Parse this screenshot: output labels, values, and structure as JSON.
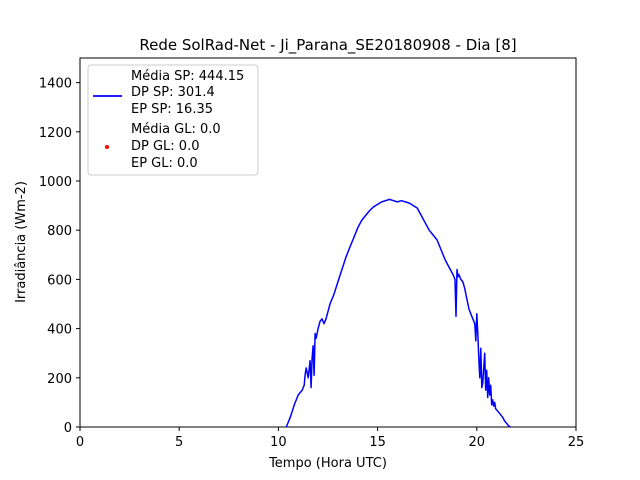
{
  "chart_data": {
    "type": "line",
    "title": "Rede SolRad-Net - Ji_Parana_SE20180908 - Dia [8]",
    "xlabel": "Tempo (Hora UTC)",
    "ylabel": "Irradiância (Wm-2)",
    "xlim": [
      0,
      25
    ],
    "ylim": [
      0,
      1500
    ],
    "xticks": [
      0,
      5,
      10,
      15,
      20,
      25
    ],
    "yticks": [
      0,
      200,
      400,
      600,
      800,
      1000,
      1200,
      1400
    ],
    "grid": false,
    "legend_position": "top-left",
    "series": [
      {
        "name": "SP",
        "legend_lines": [
          "Média SP: 444.15",
          "DP SP: 301.4",
          "EP SP: 16.35"
        ],
        "color": "#0000ff",
        "marker": "line",
        "x": [
          10.4,
          10.6,
          10.8,
          11.0,
          11.2,
          11.3,
          11.35,
          11.4,
          11.5,
          11.6,
          11.65,
          11.7,
          11.75,
          11.8,
          11.85,
          11.9,
          12.0,
          12.1,
          12.2,
          12.3,
          12.4,
          12.5,
          12.6,
          12.8,
          13.0,
          13.2,
          13.4,
          13.6,
          13.8,
          14.0,
          14.2,
          14.4,
          14.6,
          14.8,
          15.0,
          15.2,
          15.4,
          15.6,
          15.8,
          16.0,
          16.2,
          16.4,
          16.6,
          16.8,
          17.0,
          17.2,
          17.4,
          17.6,
          17.8,
          18.0,
          18.2,
          18.4,
          18.6,
          18.8,
          18.9,
          18.95,
          19.0,
          19.05,
          19.1,
          19.2,
          19.3,
          19.4,
          19.5,
          19.6,
          19.7,
          19.8,
          19.9,
          19.95,
          20.0,
          20.05,
          20.1,
          20.15,
          20.2,
          20.25,
          20.3,
          20.35,
          20.4,
          20.45,
          20.5,
          20.55,
          20.6,
          20.65,
          20.7,
          20.75,
          20.8,
          20.85,
          20.9,
          20.95,
          21.0,
          21.1,
          21.2,
          21.3,
          21.4,
          21.5,
          21.6,
          21.7
        ],
        "y": [
          0,
          40,
          90,
          130,
          150,
          170,
          215,
          240,
          200,
          270,
          160,
          280,
          330,
          210,
          380,
          360,
          400,
          430,
          440,
          420,
          440,
          470,
          500,
          540,
          590,
          640,
          690,
          730,
          770,
          810,
          840,
          860,
          880,
          895,
          905,
          915,
          920,
          925,
          920,
          915,
          920,
          915,
          910,
          900,
          890,
          860,
          830,
          800,
          780,
          760,
          720,
          680,
          650,
          620,
          600,
          450,
          640,
          610,
          620,
          600,
          590,
          560,
          520,
          480,
          460,
          440,
          420,
          350,
          460,
          380,
          280,
          200,
          320,
          160,
          180,
          240,
          300,
          150,
          230,
          120,
          200,
          130,
          170,
          90,
          110,
          85,
          100,
          75,
          70,
          60,
          50,
          40,
          25,
          15,
          5,
          0
        ]
      },
      {
        "name": "GL",
        "legend_lines": [
          "Média GL: 0.0",
          "DP GL: 0.0",
          "EP GL: 0.0"
        ],
        "color": "#ff0000",
        "marker": "point",
        "x": [],
        "y": []
      }
    ]
  }
}
